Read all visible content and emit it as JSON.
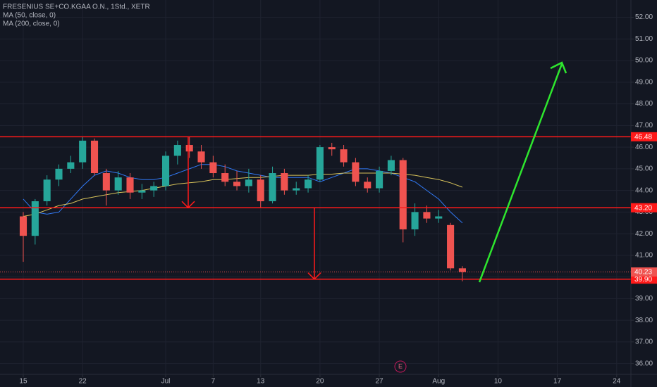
{
  "chart_data": {
    "type": "candlestick",
    "title": "FRESENIUS SE+CO.KGAA O.N., 1Std., XETR",
    "x": [
      0,
      1,
      2,
      3,
      4,
      5,
      6,
      7,
      8,
      9,
      10,
      11,
      12,
      13,
      14,
      15,
      16,
      17,
      18,
      19,
      20,
      21,
      22,
      23,
      24,
      25,
      26,
      27,
      28,
      29,
      30,
      31,
      32,
      33,
      34,
      35,
      36,
      37
    ],
    "open": [
      42.8,
      41.9,
      43.5,
      44.5,
      45.0,
      45.3,
      46.3,
      44.8,
      44.0,
      44.6,
      43.9,
      44.0,
      44.2,
      45.6,
      46.1,
      45.8,
      45.3,
      44.8,
      44.4,
      44.2,
      44.5,
      43.5,
      44.8,
      44.0,
      44.1,
      44.5,
      46.0,
      45.9,
      45.3,
      44.4,
      44.1,
      44.9,
      45.4,
      42.2,
      43.0,
      42.7,
      42.4,
      40.4
    ],
    "high": [
      43.0,
      43.6,
      44.7,
      45.2,
      45.6,
      46.48,
      46.4,
      45.0,
      44.9,
      44.8,
      44.3,
      44.4,
      45.8,
      46.3,
      46.48,
      46.1,
      45.6,
      45.2,
      44.9,
      45.0,
      44.7,
      45.1,
      45.0,
      44.4,
      44.7,
      46.1,
      46.2,
      46.1,
      45.5,
      44.6,
      45.1,
      45.6,
      45.5,
      43.4,
      43.3,
      43.1,
      42.5,
      40.5
    ],
    "low": [
      40.7,
      41.5,
      43.3,
      44.2,
      44.8,
      45.0,
      44.7,
      43.3,
      43.8,
      43.6,
      43.6,
      43.7,
      44.0,
      45.2,
      45.5,
      45.0,
      44.6,
      44.2,
      44.0,
      43.9,
      43.2,
      43.4,
      43.8,
      43.8,
      43.9,
      44.4,
      45.6,
      45.1,
      44.2,
      43.9,
      43.9,
      44.7,
      41.6,
      41.9,
      42.5,
      42.5,
      40.3,
      39.8
    ],
    "close": [
      41.9,
      43.5,
      44.5,
      45.0,
      45.3,
      46.3,
      44.8,
      44.0,
      44.6,
      43.9,
      44.0,
      44.2,
      45.6,
      46.1,
      45.8,
      45.3,
      44.8,
      44.4,
      44.2,
      44.5,
      43.5,
      44.8,
      44.0,
      44.1,
      44.5,
      46.0,
      45.9,
      45.3,
      44.4,
      44.1,
      44.9,
      45.4,
      42.2,
      43.0,
      42.7,
      42.8,
      40.4,
      40.23
    ],
    "up_color": "#26a69a",
    "down_color": "#ef5350",
    "series": [
      {
        "name": "MA (50, close, 0)",
        "color": "#3179f5",
        "values": [
          43.6,
          43.0,
          42.9,
          43.0,
          43.6,
          44.2,
          44.7,
          44.9,
          44.8,
          44.6,
          44.5,
          44.5,
          44.6,
          44.8,
          45.0,
          45.2,
          45.2,
          45.1,
          44.9,
          44.8,
          44.7,
          44.6,
          44.6,
          44.6,
          44.6,
          44.4,
          44.6,
          44.8,
          45.0,
          45.0,
          44.9,
          44.8,
          44.6,
          44.4,
          44.0,
          43.6,
          43.0,
          42.5
        ]
      },
      {
        "name": "MA (200, close, 0)",
        "color": "#d8c35a",
        "values": [
          42.8,
          42.9,
          43.1,
          43.3,
          43.4,
          43.6,
          43.7,
          43.8,
          43.9,
          43.95,
          44.0,
          44.1,
          44.2,
          44.3,
          44.35,
          44.4,
          44.5,
          44.5,
          44.55,
          44.6,
          44.6,
          44.65,
          44.7,
          44.7,
          44.7,
          44.75,
          44.75,
          44.8,
          44.8,
          44.8,
          44.8,
          44.8,
          44.75,
          44.7,
          44.6,
          44.5,
          44.35,
          44.15
        ]
      }
    ],
    "levels": {
      "values": [
        46.48,
        43.2,
        39.9
      ],
      "value_labels": [
        "46.48",
        "43.20",
        "39.90"
      ],
      "color": "#ff1a1a"
    },
    "last_value": 40.23,
    "last_value_label": "40.23",
    "event_marker": "E",
    "xlim": [
      -1.96,
      51.2
    ],
    "xticks": [
      {
        "value": 0,
        "label": "15"
      },
      {
        "value": 5,
        "label": "22"
      },
      {
        "value": 12,
        "label": "Jul"
      },
      {
        "value": 16,
        "label": "7"
      },
      {
        "value": 20,
        "label": "13"
      },
      {
        "value": 25,
        "label": "20"
      },
      {
        "value": 30,
        "label": "27"
      },
      {
        "value": 35,
        "label": "Aug"
      },
      {
        "value": 40,
        "label": "10"
      },
      {
        "value": 45,
        "label": "17"
      },
      {
        "value": 50,
        "label": "24"
      }
    ],
    "ylim": [
      35.5,
      52.8
    ],
    "yticks": [
      {
        "value": 36,
        "label": "36.00"
      },
      {
        "value": 37,
        "label": "37.00"
      },
      {
        "value": 38,
        "label": "38.00"
      },
      {
        "value": 39,
        "label": "39.00"
      },
      {
        "value": 40,
        "label": "40.00"
      },
      {
        "value": 41,
        "label": "41.00"
      },
      {
        "value": 42,
        "label": "42.00"
      },
      {
        "value": 43,
        "label": "43.00"
      },
      {
        "value": 44,
        "label": "44.00"
      },
      {
        "value": 45,
        "label": "45.00"
      },
      {
        "value": 46,
        "label": "46.00"
      },
      {
        "value": 47,
        "label": "47.00"
      },
      {
        "value": 48,
        "label": "48.00"
      },
      {
        "value": 49,
        "label": "49.00"
      },
      {
        "value": 50,
        "label": "50.00"
      },
      {
        "value": 51,
        "label": "51.00"
      },
      {
        "value": 52,
        "label": "52.00"
      }
    ],
    "grid": true
  }
}
